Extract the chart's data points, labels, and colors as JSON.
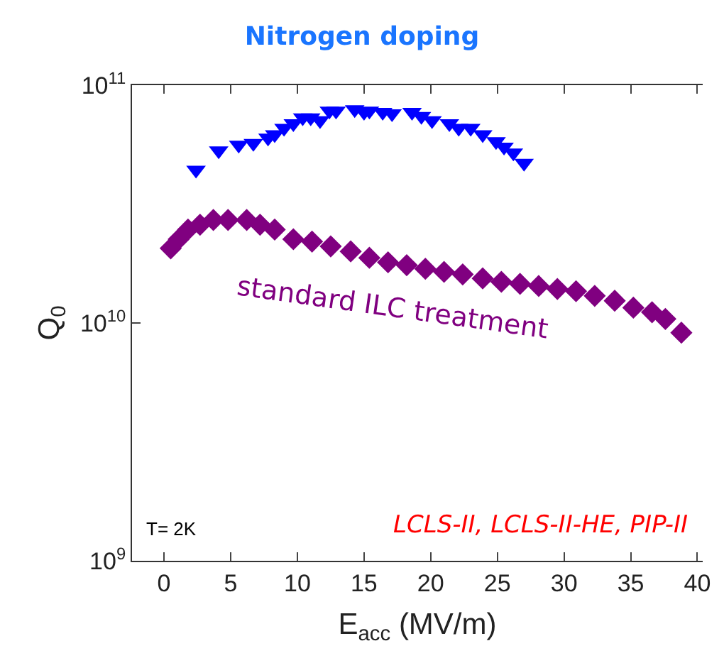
{
  "chart_data": {
    "type": "scatter",
    "title": "Nitrogen doping",
    "xlabel": "E$_{acc}$ (MV/m)",
    "ylabel": "Q$_{0}$",
    "log": "y",
    "grid": false,
    "legend": false,
    "xlim": [
      -2.4,
      40.4
    ],
    "xticks": [
      0,
      5,
      10,
      15,
      20,
      25,
      30,
      35,
      40
    ],
    "ylim": [
      1000000000.0,
      100000000000.0
    ],
    "yticks": [
      {
        "value": 1000000000.0,
        "label": "10$^{9}$"
      },
      {
        "value": 10000000000.0,
        "label": "10$^{10}$"
      },
      {
        "value": 100000000000.0,
        "label": "10$^{11}$"
      }
    ],
    "annotations": [
      "T= 2K",
      "LCLS-II, LCLS-II-HE, PIP-II"
    ],
    "series": [
      {
        "color": "#0000ff",
        "marker": "triangle",
        "x": [
          2.4,
          4.1,
          5.6,
          6.4,
          6.7,
          7.8,
          8.3,
          9.0,
          9.7,
          10.4,
          11.0,
          11.7,
          12.4,
          12.9,
          14.3,
          15.0,
          15.4,
          16.4,
          17.1,
          18.6,
          19.3,
          20.1,
          21.4,
          22.1,
          23.0,
          23.9,
          24.9,
          25.5,
          26.2,
          27.0
        ],
        "values": [
          44000000000.0,
          53000000000.0,
          56000000000.0,
          null,
          57000000000.0,
          60000000000.0,
          62000000000.0,
          66000000000.0,
          69000000000.0,
          73000000000.0,
          73000000000.0,
          71000000000.0,
          78000000000.0,
          78000000000.0,
          79000000000.0,
          77000000000.0,
          78000000000.0,
          77000000000.0,
          76000000000.0,
          77000000000.0,
          74000000000.0,
          71000000000.0,
          69000000000.0,
          66000000000.0,
          66000000000.0,
          62000000000.0,
          58000000000.0,
          55000000000.0,
          52000000000.0,
          47000000000.0
        ]
      },
      {
        "name": "standard ILC treatment",
        "color": "#800080",
        "marker": "diamond",
        "x": [
          0.5,
          1.1,
          1.8,
          2.7,
          3.7,
          4.8,
          6.2,
          7.2,
          8.3,
          9.7,
          11.1,
          12.5,
          14.0,
          15.4,
          16.8,
          18.2,
          19.6,
          21.0,
          22.4,
          23.9,
          25.3,
          26.7,
          28.1,
          29.5,
          30.9,
          32.3,
          33.8,
          35.2,
          36.6,
          37.6,
          38.8
        ],
        "values": [
          20600000000.0,
          22500000000.0,
          24700000000.0,
          25900000000.0,
          27100000000.0,
          27100000000.0,
          27100000000.0,
          25900000000.0,
          24700000000.0,
          22500000000.0,
          22000000000.0,
          21000000000.0,
          20000000000.0,
          18800000000.0,
          18000000000.0,
          17500000000.0,
          16900000000.0,
          16400000000.0,
          16000000000.0,
          15400000000.0,
          14900000000.0,
          14600000000.0,
          14300000000.0,
          13900000000.0,
          13600000000.0,
          13000000000.0,
          12400000000.0,
          11600000000.0,
          11100000000.0,
          10400000000.0,
          9100000000.0
        ]
      }
    ]
  }
}
